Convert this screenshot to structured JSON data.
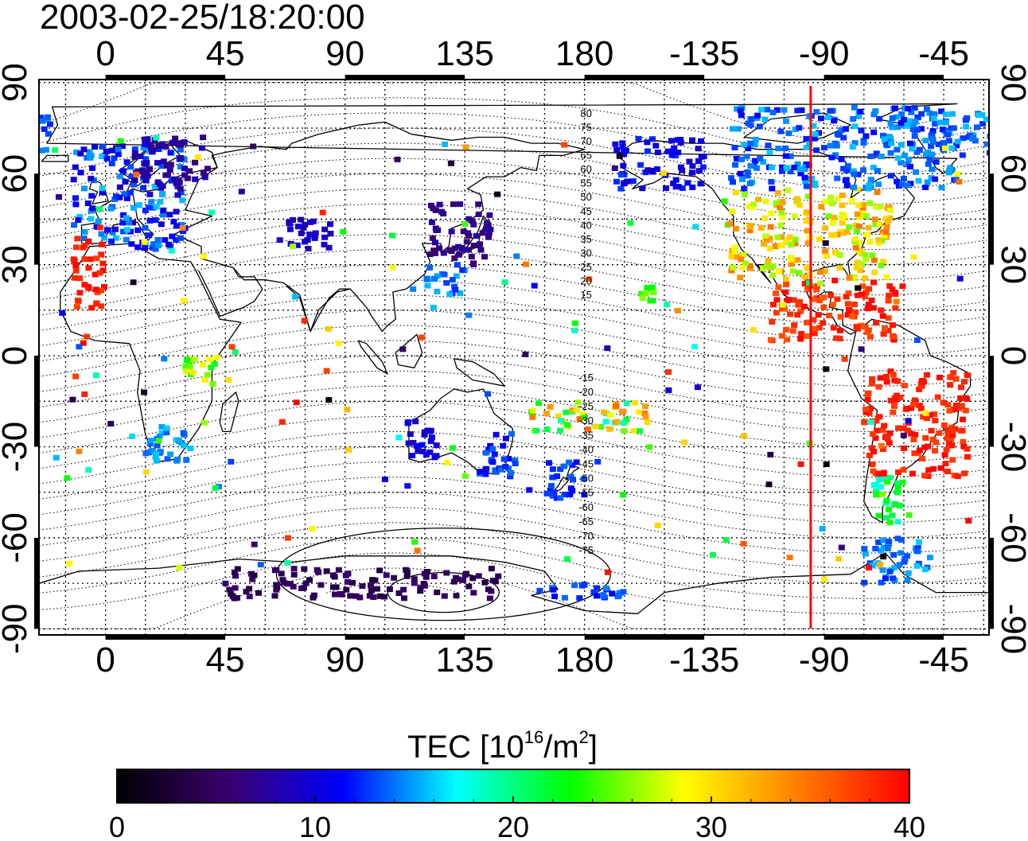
{
  "title": "2003-02-25/18:20:00",
  "map": {
    "lon_labels": [
      "0",
      "45",
      "90",
      "135",
      "180",
      "-135",
      "-90",
      "-45"
    ],
    "lon_values": [
      0,
      45,
      90,
      135,
      180,
      225,
      270,
      315
    ],
    "lat_labels": [
      "90",
      "60",
      "30",
      "0",
      "-30",
      "-60",
      "-90"
    ],
    "lat_values": [
      90,
      60,
      30,
      0,
      -30,
      -60,
      -90
    ],
    "lon_range": [
      -25,
      332
    ],
    "lat_range": [
      -92,
      91
    ],
    "grid": true,
    "marker_line": {
      "lon": -95,
      "color": "#ff0000"
    },
    "magnetic_latitude_labels_north": [
      "80",
      "75",
      "70",
      "65",
      "60",
      "55",
      "50",
      "45",
      "40",
      "35",
      "30",
      "25",
      "20",
      "15"
    ],
    "magnetic_latitude_labels_south": [
      "-15",
      "-20",
      "-25",
      "-30",
      "-35",
      "-40",
      "-45",
      "-50",
      "-55",
      "-60",
      "-65",
      "-70",
      "-75"
    ]
  },
  "colorbar": {
    "label_main": "TEC  [10",
    "label_exp1": "16",
    "label_mid": "/m",
    "label_exp2": "2",
    "label_end": "]",
    "min": 0,
    "max": 40,
    "tick_labels": [
      "0",
      "10",
      "20",
      "30",
      "40"
    ],
    "tick_values": [
      0,
      10,
      20,
      30,
      40
    ],
    "colormap": [
      "#000000",
      "#3a0070",
      "#0000ff",
      "#00ffff",
      "#00ff00",
      "#ffff00",
      "#ff8000",
      "#ff0000"
    ]
  },
  "tec_regions": [
    {
      "name": "north-america",
      "lon_range": [
        -125,
        -65
      ],
      "lat_range": [
        25,
        55
      ],
      "tec_range": [
        25,
        35
      ]
    },
    {
      "name": "central-america",
      "lon_range": [
        -110,
        -60
      ],
      "lat_range": [
        5,
        25
      ],
      "tec_range": [
        36,
        40
      ]
    },
    {
      "name": "south-america",
      "lon_range": [
        -75,
        -35
      ],
      "lat_range": [
        -40,
        -5
      ],
      "tec_range": [
        37,
        40
      ]
    },
    {
      "name": "patagonia",
      "lon_range": [
        -72,
        -58
      ],
      "lat_range": [
        -55,
        -40
      ],
      "tec_range": [
        17,
        26
      ]
    },
    {
      "name": "antarctic-peninsula",
      "lon_range": [
        -75,
        -50
      ],
      "lat_range": [
        -75,
        -60
      ],
      "tec_range": [
        12,
        16
      ]
    },
    {
      "name": "alaska",
      "lon_range": [
        -170,
        -135
      ],
      "lat_range": [
        55,
        72
      ],
      "tec_range": [
        9,
        13
      ]
    },
    {
      "name": "canada-arctic",
      "lon_range": [
        -125,
        -40
      ],
      "lat_range": [
        55,
        82
      ],
      "tec_range": [
        11,
        16
      ]
    },
    {
      "name": "greenland-north",
      "lon_range": [
        -60,
        -20
      ],
      "lat_range": [
        65,
        80
      ],
      "tec_range": [
        12,
        16
      ]
    },
    {
      "name": "europe",
      "lon_range": [
        -12,
        30
      ],
      "lat_range": [
        35,
        70
      ],
      "tec_range": [
        9,
        16
      ]
    },
    {
      "name": "europe-north",
      "lon_range": [
        10,
        40
      ],
      "lat_range": [
        55,
        72
      ],
      "tec_range": [
        6,
        9
      ]
    },
    {
      "name": "iberia-morocco",
      "lon_range": [
        -12,
        0
      ],
      "lat_range": [
        15,
        40
      ],
      "tec_range": [
        37,
        40
      ]
    },
    {
      "name": "japan-korea",
      "lon_range": [
        120,
        145
      ],
      "lat_range": [
        30,
        50
      ],
      "tec_range": [
        5,
        8
      ]
    },
    {
      "name": "taiwan-okinawa",
      "lon_range": [
        120,
        135
      ],
      "lat_range": [
        20,
        30
      ],
      "tec_range": [
        12,
        16
      ]
    },
    {
      "name": "central-asia",
      "lon_range": [
        65,
        85
      ],
      "lat_range": [
        35,
        45
      ],
      "tec_range": [
        8,
        10
      ]
    },
    {
      "name": "australia-east",
      "lon_range": [
        140,
        155
      ],
      "lat_range": [
        -40,
        -25
      ],
      "tec_range": [
        10,
        14
      ]
    },
    {
      "name": "australia-west",
      "lon_range": [
        113,
        125
      ],
      "lat_range": [
        -35,
        -20
      ],
      "tec_range": [
        9,
        12
      ]
    },
    {
      "name": "new-zealand",
      "lon_range": [
        165,
        180
      ],
      "lat_range": [
        -47,
        -35
      ],
      "tec_range": [
        11,
        14
      ]
    },
    {
      "name": "pacific-islands",
      "lon_range": [
        160,
        205
      ],
      "lat_range": [
        -25,
        -15
      ],
      "tec_range": [
        18,
        36
      ]
    },
    {
      "name": "hawaii",
      "lon_range": [
        -160,
        -154
      ],
      "lat_range": [
        18,
        23
      ],
      "tec_range": [
        22,
        26
      ]
    },
    {
      "name": "southern-africa",
      "lon_range": [
        15,
        32
      ],
      "lat_range": [
        -35,
        -22
      ],
      "tec_range": [
        13,
        16
      ]
    },
    {
      "name": "east-africa",
      "lon_range": [
        30,
        42
      ],
      "lat_range": [
        -10,
        0
      ],
      "tec_range": [
        22,
        30
      ]
    },
    {
      "name": "antarctica",
      "lon_range": [
        45,
        150
      ],
      "lat_range": [
        -80,
        -70
      ],
      "tec_range": [
        3,
        6
      ]
    },
    {
      "name": "antarctica-ross",
      "lon_range": [
        160,
        195
      ],
      "lat_range": [
        -80,
        -75
      ],
      "tec_range": [
        11,
        15
      ]
    }
  ]
}
